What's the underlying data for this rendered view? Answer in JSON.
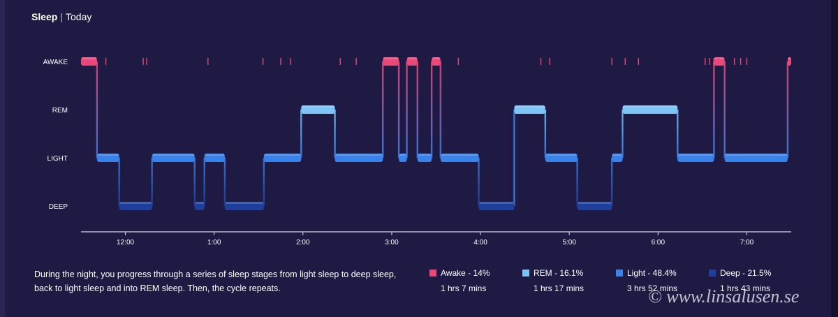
{
  "header": {
    "title": "Sleep",
    "separator": "|",
    "subtitle": "Today"
  },
  "colors": {
    "background": "#1f1a44",
    "awake": "#e8487a",
    "rem": "#7ec3f5",
    "light": "#3b82e8",
    "deep": "#1f3f9c",
    "axis": "#d9d7e8"
  },
  "chart_data": {
    "type": "step",
    "y_categories": [
      "DEEP",
      "LIGHT",
      "REM",
      "AWAKE"
    ],
    "x_axis": {
      "unit": "hours",
      "start": 11.5,
      "end": 19.5,
      "ticks": [
        12,
        13,
        14,
        15,
        16,
        17,
        18,
        19
      ],
      "tick_labels": [
        "12:00",
        "1:00",
        "2:00",
        "3:00",
        "4:00",
        "5:00",
        "6:00",
        "7:00"
      ]
    },
    "segments": [
      {
        "stage": "AWAKE",
        "start": 11.5,
        "end": 11.68
      },
      {
        "stage": "LIGHT",
        "start": 11.68,
        "end": 11.93
      },
      {
        "stage": "DEEP",
        "start": 11.93,
        "end": 12.3
      },
      {
        "stage": "LIGHT",
        "start": 12.3,
        "end": 12.78
      },
      {
        "stage": "DEEP",
        "start": 12.78,
        "end": 12.89
      },
      {
        "stage": "LIGHT",
        "start": 12.89,
        "end": 13.12
      },
      {
        "stage": "DEEP",
        "start": 13.12,
        "end": 13.56
      },
      {
        "stage": "LIGHT",
        "start": 13.56,
        "end": 13.98
      },
      {
        "stage": "REM",
        "start": 13.98,
        "end": 14.36
      },
      {
        "stage": "LIGHT",
        "start": 14.36,
        "end": 14.9
      },
      {
        "stage": "AWAKE",
        "start": 14.9,
        "end": 15.08
      },
      {
        "stage": "LIGHT",
        "start": 15.08,
        "end": 15.17
      },
      {
        "stage": "AWAKE",
        "start": 15.17,
        "end": 15.29
      },
      {
        "stage": "LIGHT",
        "start": 15.29,
        "end": 15.45
      },
      {
        "stage": "AWAKE",
        "start": 15.45,
        "end": 15.55
      },
      {
        "stage": "LIGHT",
        "start": 15.55,
        "end": 15.98
      },
      {
        "stage": "DEEP",
        "start": 15.98,
        "end": 16.38
      },
      {
        "stage": "REM",
        "start": 16.38,
        "end": 16.73
      },
      {
        "stage": "LIGHT",
        "start": 16.73,
        "end": 17.09
      },
      {
        "stage": "DEEP",
        "start": 17.09,
        "end": 17.48
      },
      {
        "stage": "LIGHT",
        "start": 17.48,
        "end": 17.6
      },
      {
        "stage": "REM",
        "start": 17.6,
        "end": 18.22
      },
      {
        "stage": "LIGHT",
        "start": 18.22,
        "end": 18.63
      },
      {
        "stage": "AWAKE",
        "start": 18.63,
        "end": 18.75
      },
      {
        "stage": "LIGHT",
        "start": 18.75,
        "end": 19.46
      },
      {
        "stage": "AWAKE",
        "start": 19.46,
        "end": 19.5
      }
    ],
    "brief_awakenings": [
      11.78,
      12.2,
      12.24,
      12.93,
      13.55,
      13.75,
      13.86,
      14.42,
      14.6,
      15.75,
      16.68,
      16.78,
      17.48,
      17.63,
      17.78,
      18.53,
      18.58,
      18.63,
      18.68,
      18.86,
      18.93,
      19.0
    ]
  },
  "description": "During the night, you progress through a series of sleep stages from light sleep to deep sleep, back to light sleep and into REM sleep. Then, the cycle repeats.",
  "legend": [
    {
      "key": "awake",
      "label": "Awake - 14%",
      "duration": "1 hrs 7 mins",
      "color": "#e8487a"
    },
    {
      "key": "rem",
      "label": "REM - 16.1%",
      "duration": "1 hrs 17 mins",
      "color": "#7ec3f5"
    },
    {
      "key": "light",
      "label": "Light - 48.4%",
      "duration": "3 hrs 52 mins",
      "color": "#3b82e8"
    },
    {
      "key": "deep",
      "label": "Deep - 21.5%",
      "duration": "1 hrs 43 mins",
      "color": "#1f3f9c"
    }
  ],
  "watermark": "© www.linsalusen.se"
}
